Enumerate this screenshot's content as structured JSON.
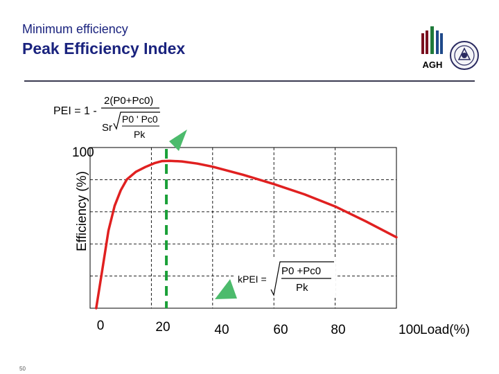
{
  "header": {
    "subtitle": "Minimum efficiency",
    "title": "Peak Efficiency Index",
    "logo_text": "AGH",
    "slide_number": "50"
  },
  "colors": {
    "title": "#1a237e",
    "curve": "#e02020",
    "peak_line": "#1aa038",
    "marker": "#4cbb6c"
  },
  "icons": {
    "peak_marker": "green-triangle-icon",
    "kpei_marker": "green-triangle-icon"
  },
  "chart_data": {
    "type": "line",
    "title": "",
    "xlabel": "Load(%)",
    "ylabel": "Efficiency (%)",
    "xlim": [
      0,
      100
    ],
    "ylim": [
      0,
      100
    ],
    "x_ticks": [
      "0",
      "20",
      "40",
      "60",
      "80",
      "100"
    ],
    "y_ticks": [
      "100"
    ],
    "grid": true,
    "series": [
      {
        "name": "Efficiency",
        "x": [
          2,
          4,
          6,
          8,
          10,
          12,
          15,
          18,
          21,
          23.5,
          26,
          30,
          35,
          40,
          50,
          60,
          70,
          80,
          90,
          100
        ],
        "y": [
          0,
          25,
          50,
          66,
          76,
          83,
          88,
          91,
          93.5,
          94.8,
          95,
          94.6,
          93.2,
          91.2,
          86,
          80,
          73.4,
          65.6,
          56,
          45.7
        ]
      }
    ],
    "peak_load_percent": 24.9,
    "annotations": {
      "pei_formula": {
        "lhs": "PEI = 1 -",
        "numerator": "2(P0+Pc0)",
        "denominator_prefix": "Sr",
        "root_numerator": "P0 ' Pc0",
        "root_denominator": "Pk"
      },
      "kpei_formula": {
        "lhs": "kPEI =",
        "numerator": "P0 +Pc0",
        "denominator": "Pk"
      }
    }
  }
}
